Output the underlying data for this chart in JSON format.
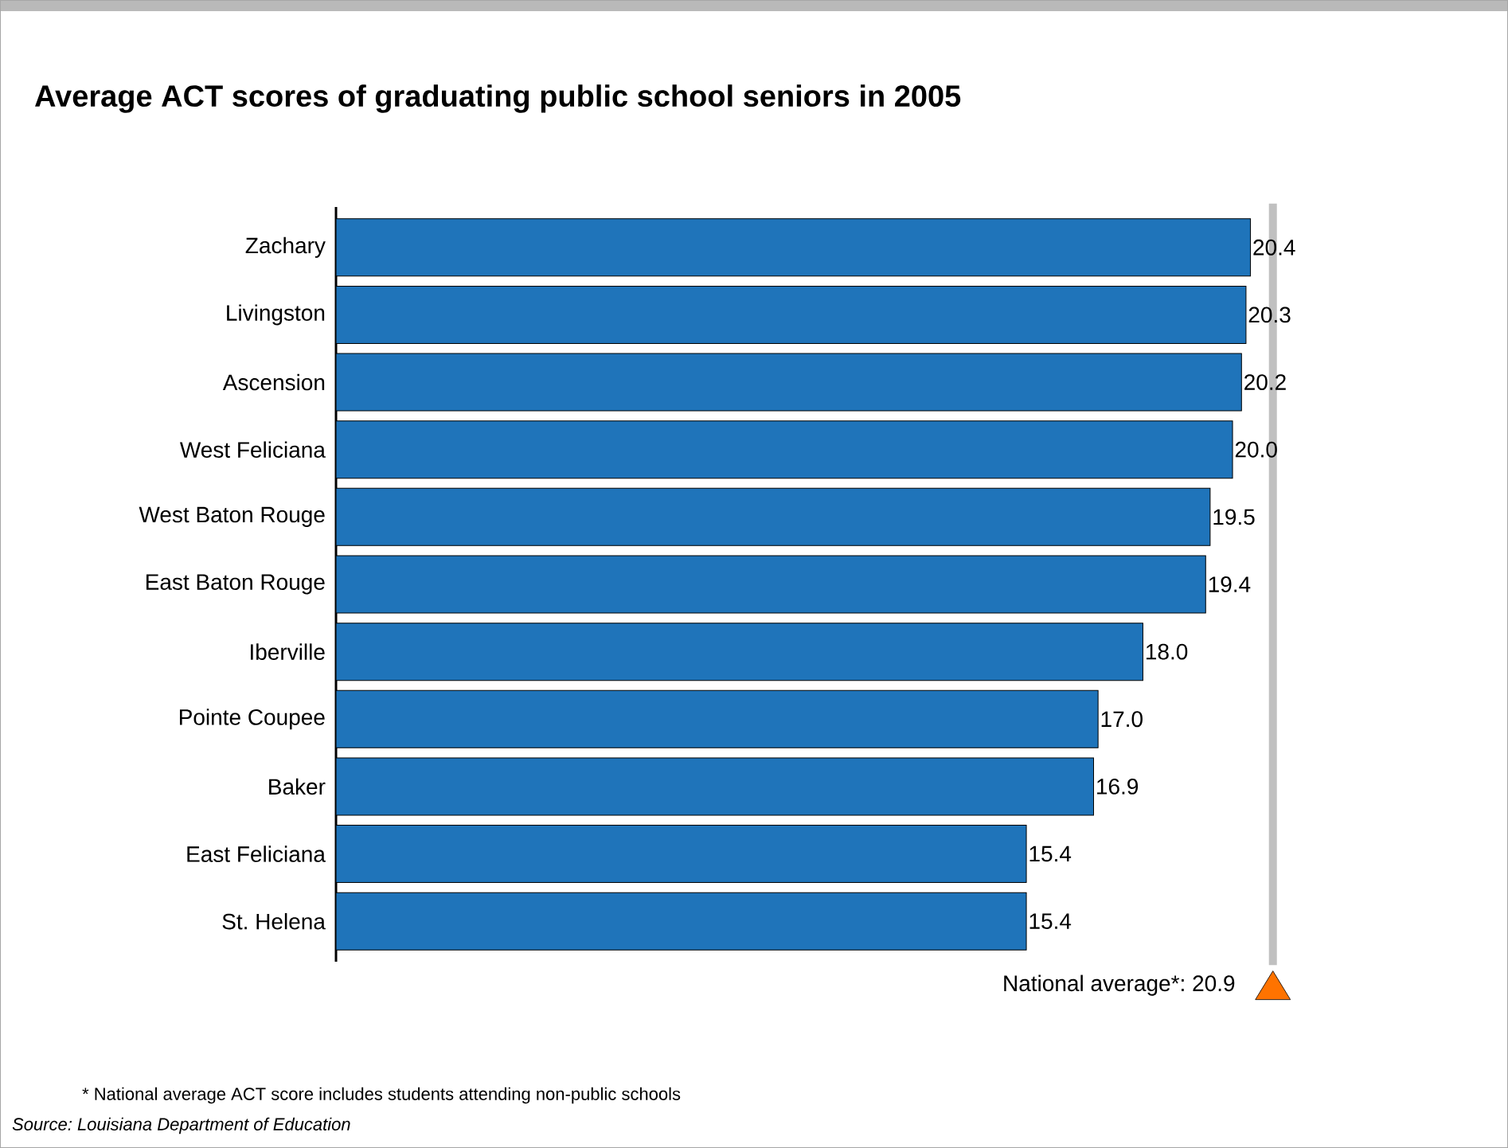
{
  "chart_data": {
    "type": "bar",
    "orientation": "horizontal",
    "title": "Average ACT scores of graduating public school seniors in 2005",
    "categories": [
      "Zachary",
      "Livingston",
      "Ascension",
      "West Feliciana",
      "West Baton Rouge",
      "East Baton Rouge",
      "Iberville",
      "Pointe Coupee",
      "Baker",
      "East Feliciana",
      "St. Helena"
    ],
    "values": [
      20.4,
      20.3,
      20.2,
      20.0,
      19.5,
      19.4,
      18.0,
      17.0,
      16.9,
      15.4,
      15.4
    ],
    "value_labels": [
      "20.4",
      "20.3",
      "20.2",
      "20.0",
      "19.5",
      "19.4",
      "18.0",
      "17.0",
      "16.9",
      "15.4",
      "15.4"
    ],
    "color": "#1f74ba",
    "tick_labels": "y",
    "ref_lines": [
      {
        "axis": "x",
        "value": 20.9,
        "label": "National average*: 20.9",
        "color": "#c0c0c0"
      }
    ],
    "annotations": [
      "* National average ACT score includes students attending non-public schools",
      "Source: Louisiana Department of Education"
    ]
  }
}
